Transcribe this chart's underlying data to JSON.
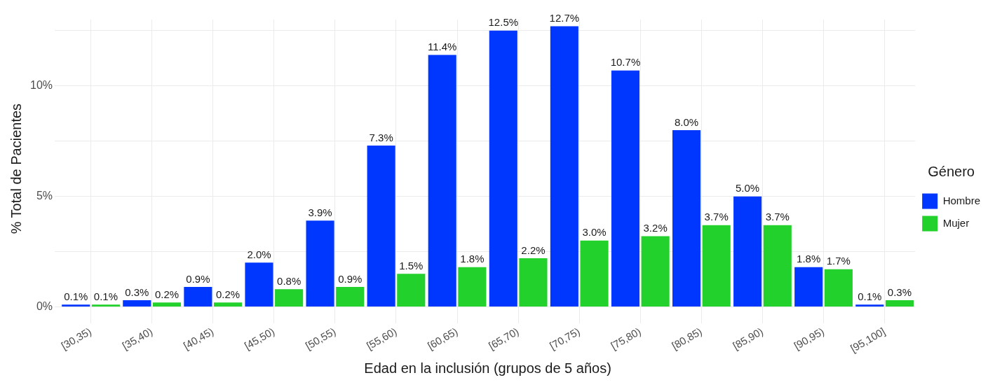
{
  "chart_data": {
    "type": "bar",
    "xlabel": "Edad en la inclusión (grupos de 5 años)",
    "ylabel": "% Total de Pacientes",
    "legend_title": "Género",
    "legend": "right",
    "grid": true,
    "categories": [
      "[30,35)",
      "[35,40)",
      "[40,45)",
      "[45,50)",
      "[50,55)",
      "[55,60)",
      "[60,65)",
      "[65,70)",
      "[70,75)",
      "[75,80)",
      "[80,85)",
      "[85,90)",
      "[90,95)",
      "[95,100]"
    ],
    "ylim": [
      -0.5,
      13
    ],
    "yticks": [
      {
        "value": 0,
        "label": "0%"
      },
      {
        "value": 2.5,
        "label": null
      },
      {
        "value": 5,
        "label": "5%"
      },
      {
        "value": 7.5,
        "label": null
      },
      {
        "value": 10,
        "label": "10%"
      },
      {
        "value": 12.5,
        "label": null
      }
    ],
    "series": [
      {
        "name": "Hombre",
        "color": "#0037ff",
        "values": [
          0.1,
          0.3,
          0.9,
          2.0,
          3.9,
          7.3,
          11.4,
          12.5,
          12.7,
          10.7,
          8.0,
          5.0,
          1.8,
          0.1
        ],
        "value_labels": [
          "0.1%",
          "0.3%",
          "0.9%",
          "2.0%",
          "3.9%",
          "7.3%",
          "11.4%",
          "12.5%",
          "12.7%",
          "10.7%",
          "8.0%",
          "5.0%",
          "1.8%",
          "0.1%"
        ]
      },
      {
        "name": "Mujer",
        "color": "#22d12b",
        "values": [
          0.1,
          0.2,
          0.2,
          0.8,
          0.9,
          1.5,
          1.8,
          2.2,
          3.0,
          3.2,
          3.7,
          3.7,
          1.7,
          0.3
        ],
        "value_labels": [
          "0.1%",
          "0.2%",
          "0.2%",
          "0.8%",
          "0.9%",
          "1.5%",
          "1.8%",
          "2.2%",
          "3.0%",
          "3.2%",
          "3.7%",
          "3.7%",
          "1.7%",
          "0.3%"
        ]
      }
    ]
  }
}
